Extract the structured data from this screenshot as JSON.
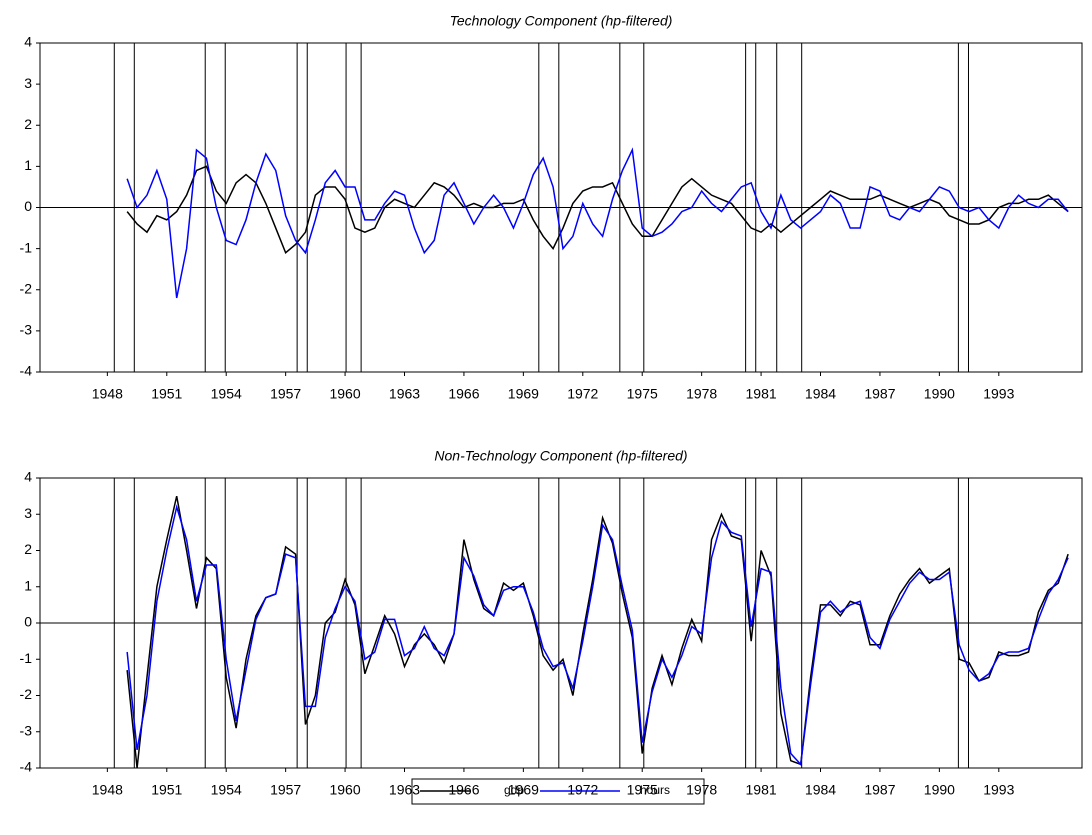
{
  "chart_data": [
    {
      "type": "line",
      "title": "Technology Component (hp-filtered)",
      "x": [
        1949,
        1949.5,
        1950,
        1950.5,
        1951,
        1951.5,
        1952,
        1952.5,
        1953,
        1953.5,
        1954,
        1954.5,
        1955,
        1955.5,
        1956,
        1956.5,
        1957,
        1957.5,
        1958,
        1958.5,
        1959,
        1959.5,
        1960,
        1960.5,
        1961,
        1961.5,
        1962,
        1962.5,
        1963,
        1963.5,
        1964,
        1964.5,
        1965,
        1965.5,
        1966,
        1966.5,
        1967,
        1967.5,
        1968,
        1968.5,
        1969,
        1969.5,
        1970,
        1970.5,
        1971,
        1971.5,
        1972,
        1972.5,
        1973,
        1973.5,
        1974,
        1974.5,
        1975,
        1975.5,
        1976,
        1976.5,
        1977,
        1977.5,
        1978,
        1978.5,
        1979,
        1979.5,
        1980,
        1980.5,
        1981,
        1981.5,
        1982,
        1982.5,
        1983,
        1983.5,
        1984,
        1984.5,
        1985,
        1985.5,
        1986,
        1986.5,
        1987,
        1987.5,
        1988,
        1988.5,
        1989,
        1989.5,
        1990,
        1990.5,
        1991,
        1991.5,
        1992,
        1992.5,
        1993,
        1993.5,
        1994,
        1994.5,
        1995,
        1995.5,
        1996,
        1996.5
      ],
      "series": [
        {
          "color": "#000000",
          "values": [
            -0.1,
            -0.4,
            -0.6,
            -0.2,
            -0.3,
            -0.1,
            0.3,
            0.9,
            1.0,
            0.4,
            0.1,
            0.6,
            0.8,
            0.6,
            0.1,
            -0.5,
            -1.1,
            -0.9,
            -0.6,
            0.3,
            0.5,
            0.5,
            0.2,
            -0.5,
            -0.6,
            -0.5,
            0,
            0.2,
            0.1,
            0,
            0.3,
            0.6,
            0.5,
            0.3,
            0,
            0.1,
            0,
            0,
            0.1,
            0.1,
            0.2,
            -0.3,
            -0.7,
            -1.0,
            -0.5,
            0.1,
            0.4,
            0.5,
            0.5,
            0.6,
            0.1,
            -0.4,
            -0.7,
            -0.7,
            -0.3,
            0.1,
            0.5,
            0.7,
            0.5,
            0.3,
            0.2,
            0.1,
            -0.2,
            -0.5,
            -0.6,
            -0.4,
            -0.6,
            -0.4,
            -0.2,
            0,
            0.2,
            0.4,
            0.3,
            0.2,
            0.2,
            0.2,
            0.3,
            0.2,
            0.1,
            0,
            0.1,
            0.2,
            0.1,
            -0.2,
            -0.3,
            -0.4,
            -0.4,
            -0.3,
            0,
            0.1,
            0.1,
            0.2,
            0.2,
            0.3,
            0.1,
            -0.1
          ]
        },
        {
          "color": "#0000ff",
          "values": [
            0.7,
            0,
            0.3,
            0.9,
            0.2,
            -2.2,
            -1.0,
            1.4,
            1.2,
            0,
            -0.8,
            -0.9,
            -0.3,
            0.6,
            1.3,
            0.9,
            -0.2,
            -0.8,
            -1.1,
            -0.3,
            0.6,
            0.9,
            0.5,
            0.5,
            -0.3,
            -0.3,
            0.1,
            0.4,
            0.3,
            -0.5,
            -1.1,
            -0.8,
            0.3,
            0.6,
            0.1,
            -0.4,
            0,
            0.3,
            0,
            -0.5,
            0.1,
            0.8,
            1.2,
            0.5,
            -1.0,
            -0.7,
            0.1,
            -0.4,
            -0.7,
            0.2,
            0.9,
            1.4,
            -0.5,
            -0.7,
            -0.6,
            -0.4,
            -0.1,
            0,
            0.4,
            0.1,
            -0.1,
            0.2,
            0.5,
            0.6,
            -0.1,
            -0.5,
            0.3,
            -0.3,
            -0.5,
            -0.3,
            -0.1,
            0.3,
            0.1,
            -0.5,
            -0.5,
            0.5,
            0.4,
            -0.2,
            -0.3,
            0,
            -0.1,
            0.2,
            0.5,
            0.4,
            0,
            -0.1,
            0,
            -0.3,
            -0.5,
            0,
            0.3,
            0.1,
            0,
            0.2,
            0.2,
            -0.1
          ]
        }
      ],
      "xlim": [
        1944.6,
        1997.2
      ],
      "ylim": [
        -4,
        4
      ],
      "xticks": [
        1948,
        1951,
        1954,
        1957,
        1960,
        1963,
        1966,
        1969,
        1972,
        1975,
        1978,
        1981,
        1984,
        1987,
        1990,
        1993
      ],
      "yticks": [
        -4,
        -3,
        -2,
        -1,
        0,
        1,
        2,
        3,
        4
      ],
      "vlines": [
        1948.35,
        1949.36,
        1952.94,
        1953.95,
        1957.58,
        1958.09,
        1960.05,
        1960.81,
        1969.78,
        1970.79,
        1973.87,
        1975.08,
        1980.22,
        1980.73,
        1981.79,
        1983.05,
        1990.96,
        1991.47
      ],
      "hlines": [
        0
      ]
    },
    {
      "type": "line",
      "title": "Non-Technology Component (hp-filtered)",
      "x": [
        1949,
        1949.5,
        1950,
        1950.5,
        1951,
        1951.5,
        1952,
        1952.5,
        1953,
        1953.5,
        1954,
        1954.5,
        1955,
        1955.5,
        1956,
        1956.5,
        1957,
        1957.5,
        1958,
        1958.5,
        1959,
        1959.5,
        1960,
        1960.5,
        1961,
        1961.5,
        1962,
        1962.5,
        1963,
        1963.5,
        1964,
        1964.5,
        1965,
        1965.5,
        1966,
        1966.5,
        1967,
        1967.5,
        1968,
        1968.5,
        1969,
        1969.5,
        1970,
        1970.5,
        1971,
        1971.5,
        1972,
        1972.5,
        1973,
        1973.5,
        1974,
        1974.5,
        1975,
        1975.5,
        1976,
        1976.5,
        1977,
        1977.5,
        1978,
        1978.5,
        1979,
        1979.5,
        1980,
        1980.5,
        1981,
        1981.5,
        1982,
        1982.5,
        1983,
        1983.5,
        1984,
        1984.5,
        1985,
        1985.5,
        1986,
        1986.5,
        1987,
        1987.5,
        1988,
        1988.5,
        1989,
        1989.5,
        1990,
        1990.5,
        1991,
        1991.5,
        1992,
        1992.5,
        1993,
        1993.5,
        1994,
        1994.5,
        1995,
        1995.5,
        1996,
        1996.5
      ],
      "series": [
        {
          "name": "gdp",
          "color": "#000000",
          "values": [
            -1.3,
            -4.0,
            -1.5,
            1.0,
            2.3,
            3.5,
            2.0,
            0.4,
            1.8,
            1.5,
            -1.5,
            -2.9,
            -1.0,
            0.2,
            0.7,
            0.8,
            2.1,
            1.9,
            -2.8,
            -2.0,
            0,
            0.3,
            1.2,
            0.5,
            -1.4,
            -0.6,
            0.2,
            -0.3,
            -1.2,
            -0.6,
            -0.3,
            -0.6,
            -1.1,
            -0.3,
            2.3,
            1.2,
            0.4,
            0.2,
            1.1,
            0.9,
            1.1,
            0.2,
            -0.9,
            -1.3,
            -1.0,
            -2.0,
            -0.3,
            1.2,
            2.9,
            2.2,
            0.8,
            -0.4,
            -3.6,
            -1.8,
            -0.9,
            -1.7,
            -0.7,
            0.1,
            -0.5,
            2.3,
            3.0,
            2.4,
            2.3,
            -0.5,
            2.0,
            1.3,
            -2.5,
            -3.8,
            -3.9,
            -1.5,
            0.5,
            0.5,
            0.2,
            0.6,
            0.5,
            -0.6,
            -0.6,
            0.2,
            0.8,
            1.2,
            1.5,
            1.1,
            1.3,
            1.5,
            -1.0,
            -1.1,
            -1.6,
            -1.5,
            -0.8,
            -0.9,
            -0.9,
            -0.8,
            0.3,
            0.9,
            1.1,
            1.9
          ]
        },
        {
          "name": "hours",
          "color": "#0000ff",
          "values": [
            -0.8,
            -3.5,
            -2.0,
            0.6,
            2.0,
            3.2,
            2.3,
            0.6,
            1.6,
            1.6,
            -1.0,
            -2.7,
            -1.3,
            0.1,
            0.7,
            0.8,
            1.9,
            1.8,
            -2.3,
            -2.3,
            -0.4,
            0.4,
            1.0,
            0.6,
            -1.0,
            -0.8,
            0.1,
            0.1,
            -0.9,
            -0.7,
            -0.1,
            -0.7,
            -0.9,
            -0.3,
            1.8,
            1.3,
            0.5,
            0.2,
            0.9,
            1.0,
            1.0,
            0.3,
            -0.7,
            -1.2,
            -1.1,
            -1.8,
            -0.5,
            1.0,
            2.7,
            2.3,
            1.0,
            -0.2,
            -3.3,
            -1.9,
            -1.0,
            -1.5,
            -0.9,
            -0.1,
            -0.3,
            1.8,
            2.8,
            2.5,
            2.4,
            -0.1,
            1.5,
            1.4,
            -1.8,
            -3.6,
            -3.9,
            -1.7,
            0.3,
            0.6,
            0.3,
            0.5,
            0.6,
            -0.4,
            -0.7,
            0.1,
            0.6,
            1.1,
            1.4,
            1.2,
            1.2,
            1.4,
            -0.6,
            -1.3,
            -1.6,
            -1.4,
            -0.9,
            -0.8,
            -0.8,
            -0.7,
            0.1,
            0.8,
            1.2,
            1.8
          ]
        }
      ],
      "xlim": [
        1944.6,
        1997.2
      ],
      "ylim": [
        -4,
        4
      ],
      "xticks": [
        1948,
        1951,
        1954,
        1957,
        1960,
        1963,
        1966,
        1969,
        1972,
        1975,
        1978,
        1981,
        1984,
        1987,
        1990,
        1993
      ],
      "yticks": [
        -4,
        -3,
        -2,
        -1,
        0,
        1,
        2,
        3,
        4
      ],
      "vlines": [
        1948.35,
        1949.36,
        1952.94,
        1953.95,
        1957.58,
        1958.09,
        1960.05,
        1960.81,
        1969.78,
        1970.79,
        1973.87,
        1975.08,
        1980.22,
        1980.73,
        1981.79,
        1983.05,
        1990.96,
        1991.47
      ],
      "hlines": [
        0
      ]
    }
  ]
}
